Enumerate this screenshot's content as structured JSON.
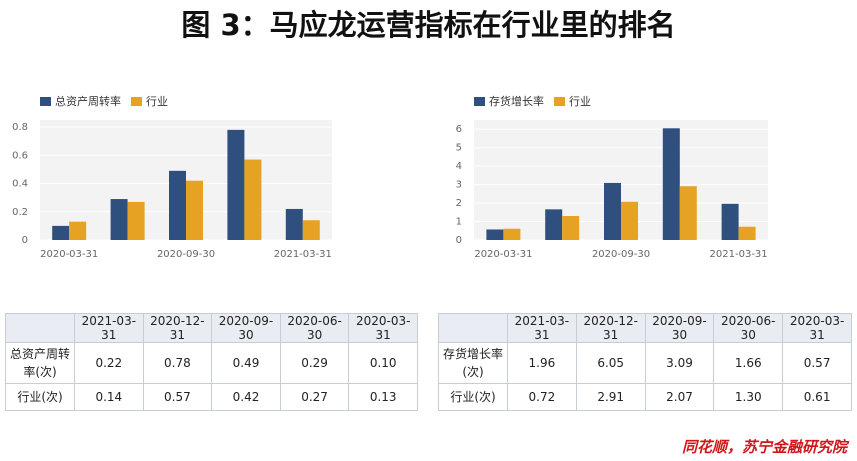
{
  "title": "图 3：马应龙运营指标在行业里的排名",
  "chart_data": [
    {
      "type": "bar",
      "categories": [
        "2020-03-31",
        null,
        "2020-09-30",
        null,
        "2021-03-31"
      ],
      "series": [
        {
          "name": "总资产周转率",
          "color": "#2f4f7f",
          "values": [
            0.1,
            0.29,
            0.49,
            0.78,
            0.22
          ]
        },
        {
          "name": "行业",
          "color": "#e6a323",
          "values": [
            0.13,
            0.27,
            0.42,
            0.57,
            0.14
          ]
        }
      ],
      "ylim": [
        0,
        0.85
      ],
      "yticks": [
        0,
        0.2,
        0.4,
        0.6,
        0.8
      ],
      "grid": true
    },
    {
      "type": "bar",
      "categories": [
        "2020-03-31",
        null,
        "2020-09-30",
        null,
        "2021-03-31"
      ],
      "series": [
        {
          "name": "存货增长率",
          "color": "#2f4f7f",
          "values": [
            0.57,
            1.66,
            3.09,
            6.05,
            1.96
          ]
        },
        {
          "name": "行业",
          "color": "#e6a323",
          "values": [
            0.61,
            1.3,
            2.07,
            2.91,
            0.72
          ]
        }
      ],
      "ylim": [
        0,
        6.5
      ],
      "yticks": [
        0,
        1,
        2,
        3,
        4,
        5,
        6
      ],
      "grid": true
    }
  ],
  "tables": [
    {
      "header": [
        "2021-03-31",
        "2020-12-31",
        "2020-09-30",
        "2020-06-30",
        "2020-03-31"
      ],
      "rows": [
        [
          "总资产周转率(次)",
          "0.22",
          "0.78",
          "0.49",
          "0.29",
          "0.10"
        ],
        [
          "行业(次)",
          "0.14",
          "0.57",
          "0.42",
          "0.27",
          "0.13"
        ]
      ]
    },
    {
      "header": [
        "2021-03-31",
        "2020-12-31",
        "2020-09-30",
        "2020-06-30",
        "2020-03-31"
      ],
      "rows": [
        [
          "存货增长率(次)",
          "1.96",
          "6.05",
          "3.09",
          "1.66",
          "0.57"
        ],
        [
          "行业(次)",
          "0.72",
          "2.91",
          "2.07",
          "1.30",
          "0.61"
        ]
      ]
    }
  ],
  "source": "同花顺，苏宁金融研究院"
}
